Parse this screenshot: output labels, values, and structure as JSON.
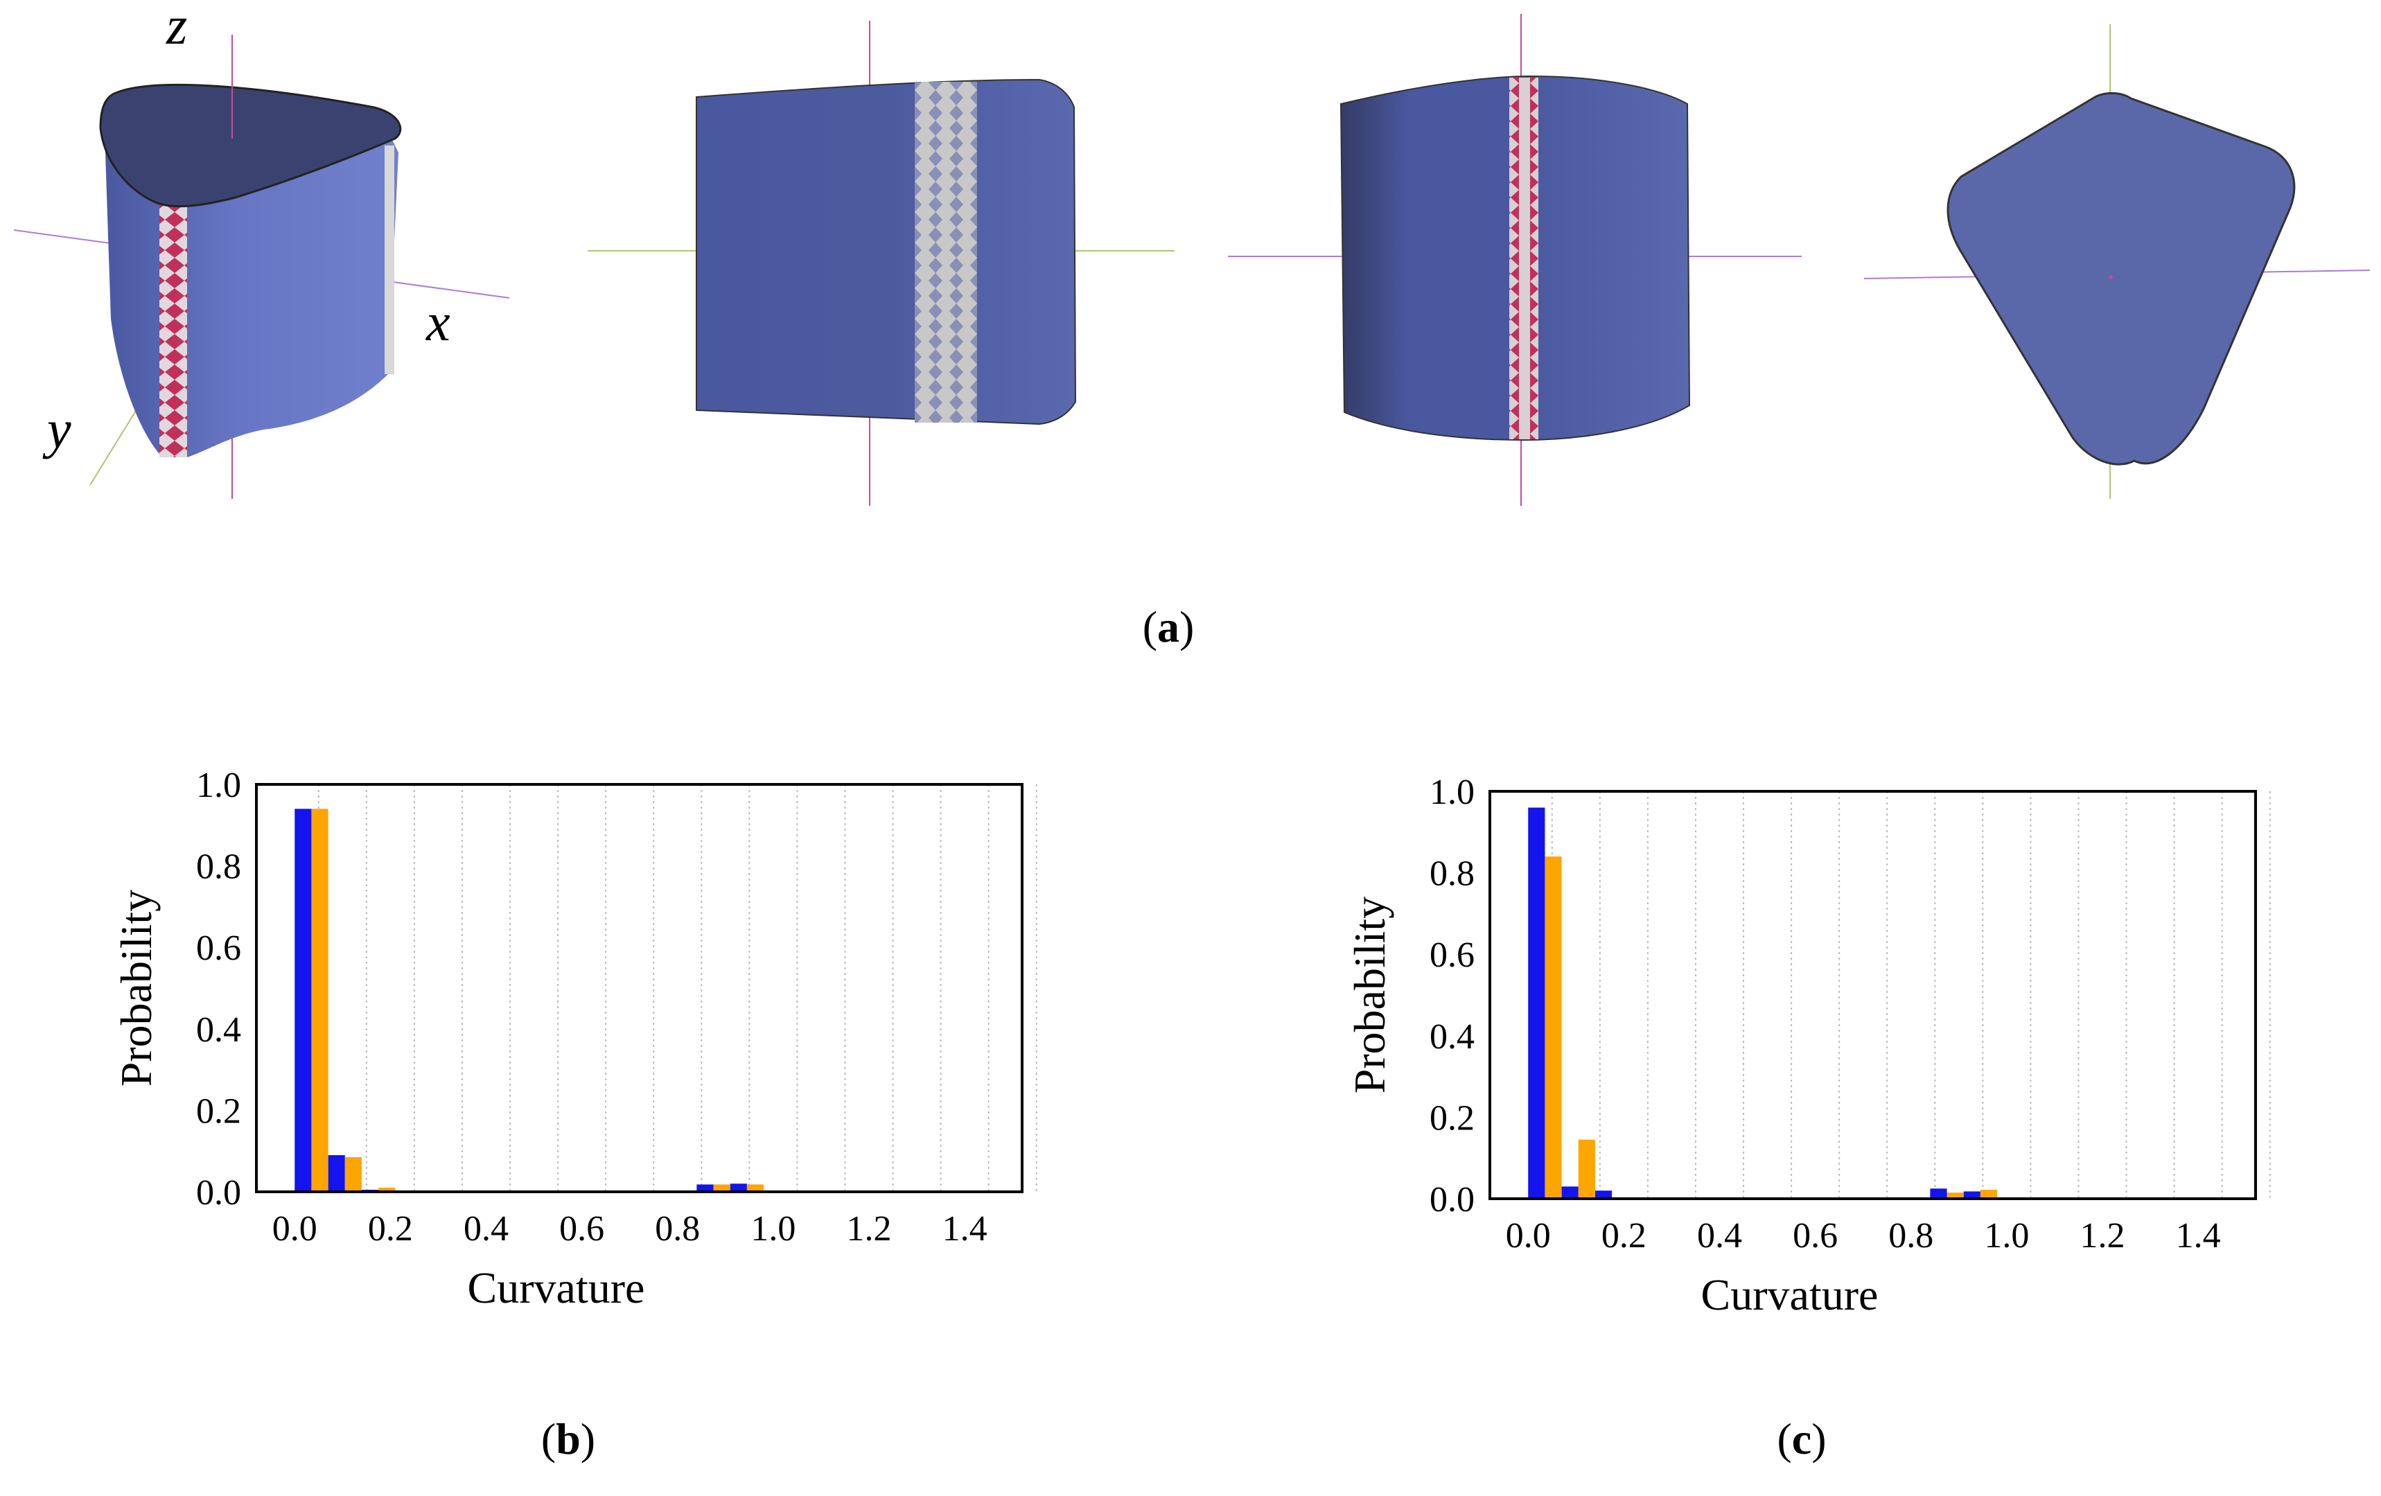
{
  "figure": {
    "captions": {
      "a": "a",
      "b": "b",
      "c": "c"
    },
    "axes_labels": {
      "x": "x",
      "y": "y",
      "z": "z"
    }
  },
  "colors": {
    "surface": "#5a68aa",
    "surface_dark": "#3a4578",
    "top_face": "#3b4470",
    "stripe_red": "#c0305a",
    "stripe_gray": "#c8c8c8",
    "axis_magenta": "#c84a9a",
    "axis_green": "#a9c870",
    "axis_violet": "#b07ad8",
    "bar_blue": "#1414ee",
    "bar_orange": "#ffa500"
  },
  "chart_data": [
    {
      "id": "b",
      "type": "bar",
      "xlabel": "Curvature",
      "ylabel": "Probability",
      "x_ticks": [
        "0.0",
        "0.2",
        "0.4",
        "0.6",
        "0.8",
        "1.0",
        "1.2",
        "1.4"
      ],
      "y_ticks": [
        "0.0",
        "0.2",
        "0.4",
        "0.6",
        "0.8",
        "1.0"
      ],
      "xlim": [
        -0.08,
        1.52
      ],
      "ylim": [
        0,
        1.0
      ],
      "grid": "vertical-dotted",
      "bin_width": 0.035,
      "series": [
        {
          "color": "blue",
          "x": [
            0.0,
            0.07,
            0.14,
            0.21,
            0.84,
            0.91,
            0.98
          ],
          "values": [
            0.94,
            0.09,
            0.005,
            0.0,
            0.018,
            0.02,
            0.003
          ]
        },
        {
          "color": "orange",
          "x": [
            0.035,
            0.105,
            0.175,
            0.245,
            0.875,
            0.945,
            1.015
          ],
          "values": [
            0.94,
            0.085,
            0.01,
            0.0,
            0.018,
            0.018,
            0.002
          ]
        }
      ]
    },
    {
      "id": "c",
      "type": "bar",
      "xlabel": "Curvature",
      "ylabel": "Probability",
      "x_ticks": [
        "0.0",
        "0.2",
        "0.4",
        "0.6",
        "0.8",
        "1.0",
        "1.2",
        "1.4"
      ],
      "y_ticks": [
        "0.0",
        "0.2",
        "0.4",
        "0.6",
        "0.8",
        "1.0"
      ],
      "xlim": [
        -0.08,
        1.52
      ],
      "ylim": [
        0,
        1.0
      ],
      "grid": "vertical-dotted",
      "bin_width": 0.035,
      "series": [
        {
          "color": "blue",
          "x": [
            0.0,
            0.07,
            0.14,
            0.21,
            0.84,
            0.91,
            0.98
          ],
          "values": [
            0.96,
            0.03,
            0.02,
            0.0,
            0.025,
            0.018,
            0.002
          ]
        },
        {
          "color": "orange",
          "x": [
            0.035,
            0.105,
            0.175,
            0.245,
            0.875,
            0.945,
            1.015
          ],
          "values": [
            0.84,
            0.145,
            0.0,
            0.0,
            0.015,
            0.022,
            0.002
          ]
        }
      ]
    }
  ]
}
